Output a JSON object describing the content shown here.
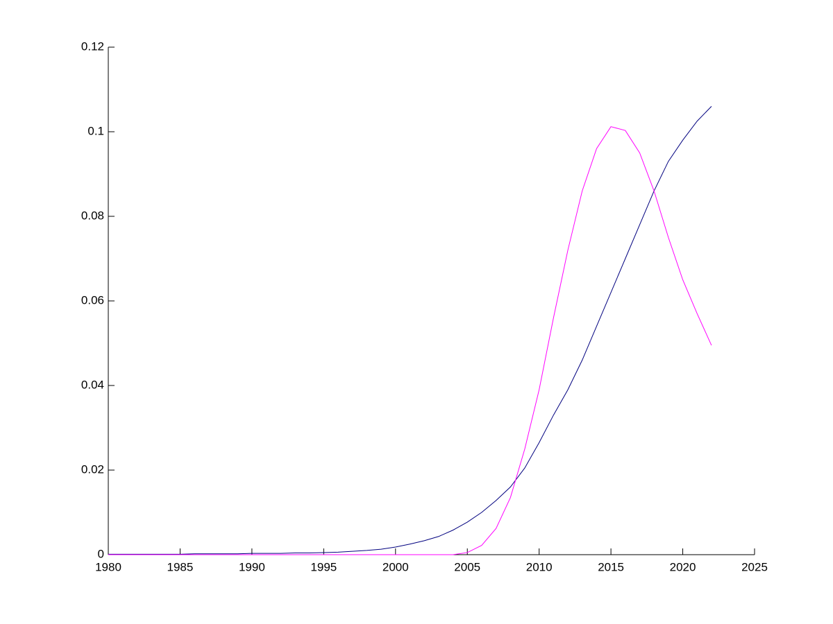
{
  "chart_data": {
    "type": "line",
    "x": [
      1980,
      1981,
      1982,
      1983,
      1984,
      1985,
      1986,
      1987,
      1988,
      1989,
      1990,
      1991,
      1992,
      1993,
      1994,
      1995,
      1996,
      1997,
      1998,
      1999,
      2000,
      2001,
      2002,
      2003,
      2004,
      2005,
      2006,
      2007,
      2008,
      2009,
      2010,
      2011,
      2012,
      2013,
      2014,
      2015,
      2016,
      2017,
      2018,
      2019,
      2020,
      2021,
      2022
    ],
    "series": [
      {
        "color": "#00007f",
        "values": [
          0.0001,
          0.0001,
          0.0001,
          0.0001,
          0.0001,
          0.0001,
          0.0002,
          0.0002,
          0.0002,
          0.0002,
          0.0003,
          0.0003,
          0.0003,
          0.0004,
          0.0004,
          0.0005,
          0.0006,
          0.0008,
          0.001,
          0.0013,
          0.0018,
          0.0025,
          0.0033,
          0.0043,
          0.0058,
          0.0077,
          0.01,
          0.0128,
          0.016,
          0.0205,
          0.0265,
          0.033,
          0.039,
          0.046,
          0.054,
          0.062,
          0.07,
          0.078,
          0.086,
          0.093,
          0.098,
          0.1025,
          0.106
        ]
      },
      {
        "color": "#ff00ff",
        "values": [
          0,
          0,
          0,
          0,
          0,
          0,
          0,
          0,
          0,
          0,
          0,
          0,
          0,
          0,
          0,
          0,
          0,
          0,
          0,
          0,
          0,
          0,
          0,
          0,
          0,
          0.0005,
          0.0022,
          0.0062,
          0.0135,
          0.025,
          0.039,
          0.056,
          0.072,
          0.086,
          0.096,
          0.1012,
          0.1003,
          0.095,
          0.086,
          0.075,
          0.065,
          0.057,
          0.0495
        ]
      }
    ],
    "xlim": [
      1980,
      2025
    ],
    "xticks": [
      1980,
      1985,
      1990,
      1995,
      2000,
      2005,
      2010,
      2015,
      2020,
      2025
    ],
    "ylim": [
      0,
      0.12
    ],
    "yticks": [
      0,
      0.02,
      0.04,
      0.06,
      0.08,
      0.1,
      0.12
    ]
  }
}
